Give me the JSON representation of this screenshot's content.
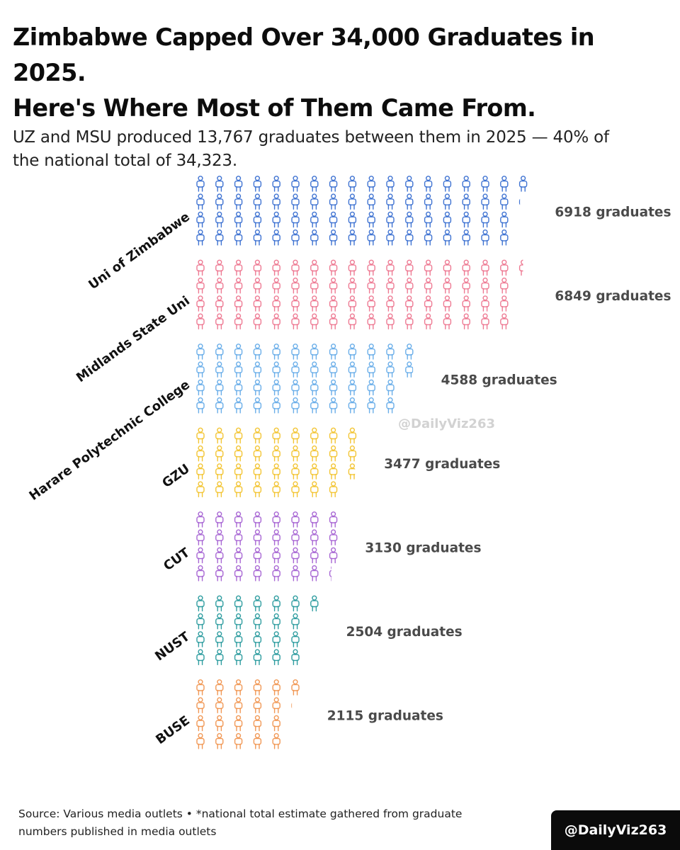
{
  "header": {
    "title_line1": "Zimbabwe Capped Over 34,000 Graduates in 2025.",
    "title_line2": "Here's Where Most of Them Came From.",
    "subtitle_line1": "UZ and MSU produced 13,767 graduates between them in 2025 — 40% of",
    "subtitle_line2": "the national total of 34,323."
  },
  "watermark": "@DailyViz263",
  "footer": {
    "source_line1": "Source: Various media outlets • *national total estimate gathered from graduate",
    "source_line2": "numbers published in media outlets"
  },
  "brand": "@DailyViz263",
  "chart_data": {
    "type": "bar",
    "orientation": "horizontal",
    "style": "pictogram",
    "icon": "person-icon",
    "value_suffix": " graduates",
    "categories": [
      "Uni of Zimbabwe",
      "Midlands State Uni",
      "Harare Polytechnic College",
      "GZU",
      "CUT",
      "NUST",
      "BUSE"
    ],
    "values": [
      6918,
      6849,
      4588,
      3477,
      3130,
      2504,
      2115
    ],
    "colors": [
      "#3f73d2",
      "#ee7a93",
      "#6aaee9",
      "#f3c534",
      "#a867d4",
      "#2f9da0",
      "#f19855"
    ],
    "grid": false,
    "legend": "none"
  }
}
